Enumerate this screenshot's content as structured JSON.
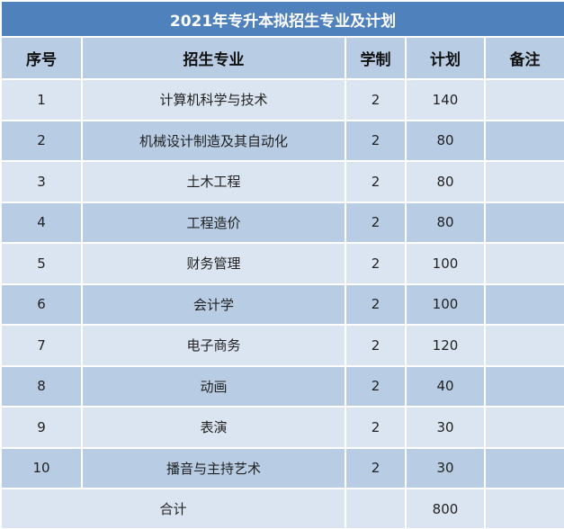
{
  "title": "2021年专升本拟招生专业及计划",
  "headers": [
    "序号",
    "招生专业",
    "学制",
    "计划",
    "备注"
  ],
  "rows": [
    {
      "no": "1",
      "major": "计算机科学与技术",
      "years": "2",
      "plan": "140",
      "note": ""
    },
    {
      "no": "2",
      "major": "机械设计制造及其自动化",
      "years": "2",
      "plan": "80",
      "note": ""
    },
    {
      "no": "3",
      "major": "土木工程",
      "years": "2",
      "plan": "80",
      "note": ""
    },
    {
      "no": "4",
      "major": "工程造价",
      "years": "2",
      "plan": "80",
      "note": ""
    },
    {
      "no": "5",
      "major": "财务管理",
      "years": "2",
      "plan": "100",
      "note": ""
    },
    {
      "no": "6",
      "major": "会计学",
      "years": "2",
      "plan": "100",
      "note": ""
    },
    {
      "no": "7",
      "major": "电子商务",
      "years": "2",
      "plan": "120",
      "note": ""
    },
    {
      "no": "8",
      "major": "动画",
      "years": "2",
      "plan": "40",
      "note": ""
    },
    {
      "no": "9",
      "major": "表演",
      "years": "2",
      "plan": "30",
      "note": ""
    },
    {
      "no": "10",
      "major": "播音与主持艺术",
      "years": "2",
      "plan": "30",
      "note": ""
    }
  ],
  "total": {
    "label": "合计",
    "plan": "800"
  },
  "colors": {
    "title_bg": "#4f81bd",
    "header_bg": "#b8cce4",
    "row_light": "#dbe5f1",
    "row_dark": "#b8cce4"
  }
}
